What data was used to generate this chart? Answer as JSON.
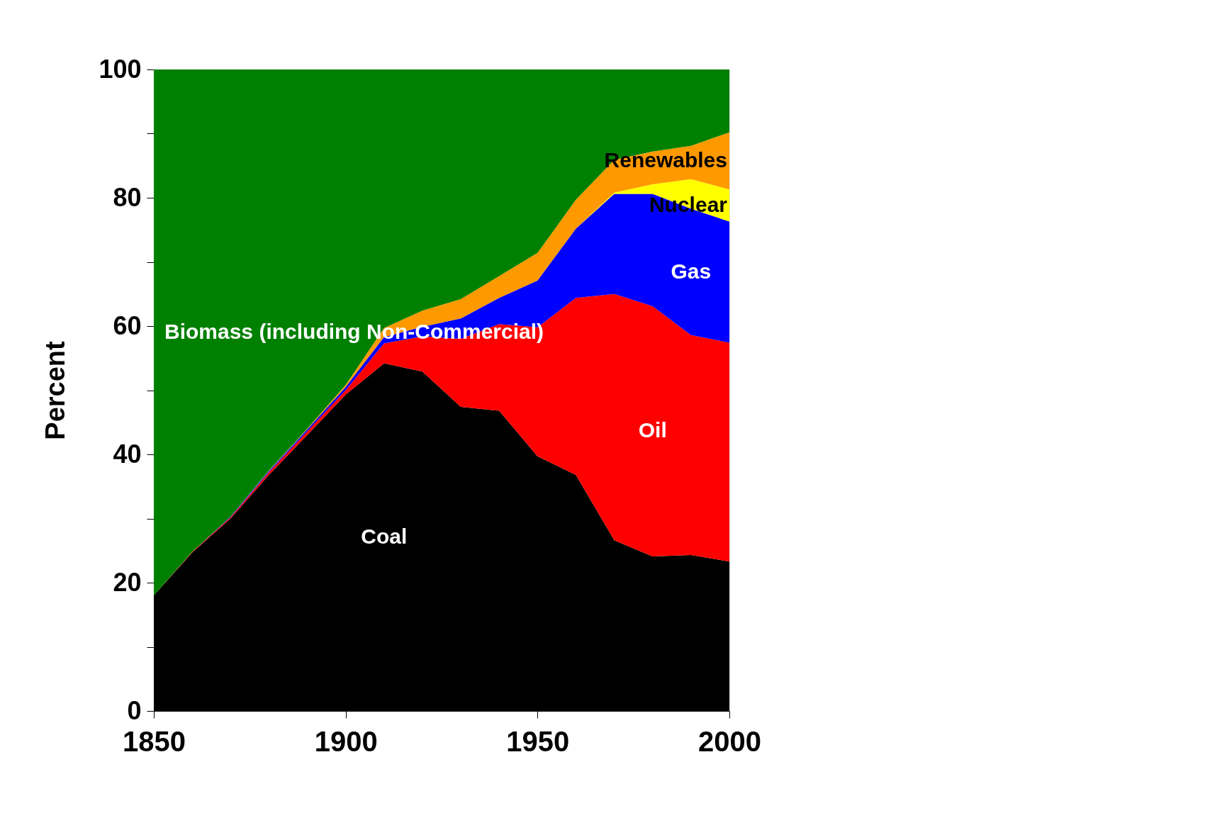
{
  "chart_data": {
    "type": "area",
    "stacked": true,
    "ylabel": "Percent",
    "x": [
      1850,
      1860,
      1870,
      1880,
      1890,
      1900,
      1910,
      1920,
      1930,
      1940,
      1950,
      1960,
      1970,
      1980,
      1990,
      2000
    ],
    "series": [
      {
        "name": "Coal",
        "color": "#000000",
        "values": [
          18.0,
          24.7,
          30.0,
          36.8,
          43.0,
          49.3,
          54.2,
          52.9,
          47.4,
          46.8,
          39.7,
          36.8,
          26.6,
          24.1,
          24.3,
          23.3
        ]
      },
      {
        "name": "Oil",
        "color": "#ff0000",
        "values": [
          0,
          0.1,
          0.2,
          0.4,
          0.6,
          0.7,
          3.1,
          5.5,
          10.6,
          13.5,
          20.1,
          27.6,
          38.4,
          39.0,
          34.3,
          34.1
        ]
      },
      {
        "name": "Gas",
        "color": "#0000ff",
        "values": [
          0,
          0,
          0.1,
          0.2,
          0.3,
          0.5,
          1.0,
          1.5,
          3.2,
          4.1,
          7.3,
          10.8,
          15.6,
          17.5,
          19.7,
          18.9
        ]
      },
      {
        "name": "Nuclear",
        "color": "#ffff00",
        "values": [
          0,
          0,
          0,
          0,
          0,
          0,
          0,
          0,
          0,
          0,
          0,
          0,
          0.2,
          1.5,
          4.6,
          5.0
        ]
      },
      {
        "name": "Renewables",
        "color": "#ff9900",
        "values": [
          0,
          0,
          0,
          0.1,
          0.1,
          0.3,
          1.4,
          2.5,
          3.0,
          3.4,
          4.3,
          4.5,
          5.1,
          5.1,
          5.2,
          8.9
        ]
      },
      {
        "name": "Biomass (including Non-Commercial)",
        "color": "#008000",
        "values": [
          82.0,
          75.2,
          69.7,
          62.5,
          56.0,
          49.2,
          40.3,
          37.6,
          35.8,
          32.2,
          28.6,
          20.3,
          14.1,
          12.8,
          11.9,
          9.8
        ]
      }
    ],
    "xlim": [
      1850,
      2000
    ],
    "xticks": [
      1850,
      1900,
      1950,
      2000
    ],
    "ylim": [
      0,
      100
    ],
    "yticks": [
      0,
      {
        "value": 10,
        "label": null
      },
      20,
      {
        "value": 30,
        "label": null
      },
      40,
      {
        "value": 50,
        "label": null
      },
      60,
      {
        "value": 70,
        "label": null
      },
      80,
      {
        "value": 90,
        "label": null
      },
      100
    ],
    "grid": false,
    "legend": false
  }
}
